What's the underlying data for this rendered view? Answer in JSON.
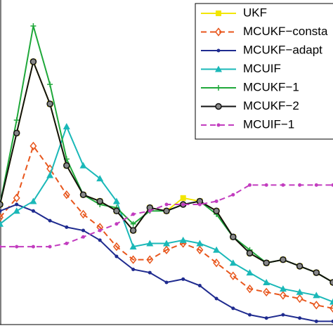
{
  "chart_data": {
    "type": "line",
    "x": [
      0,
      5,
      10,
      15,
      20,
      25,
      30,
      35,
      40,
      45,
      50,
      55,
      60,
      65,
      70,
      75,
      80,
      85,
      90,
      95,
      100
    ],
    "xlim": [
      0,
      100
    ],
    "ylim": [
      0,
      100
    ],
    "legend": "upper right",
    "series": [
      {
        "name": "UKF",
        "color": "#f2e600",
        "marker": "square",
        "dash": false,
        "values": [
          37,
          59,
          81,
          68,
          49,
          40,
          38,
          35,
          29,
          36,
          35,
          39,
          38,
          35,
          27,
          22,
          19,
          20,
          18,
          16,
          13
        ]
      },
      {
        "name": "MCUKF−consta",
        "color": "#e8561c",
        "marker": "diamond",
        "dash": true,
        "values": [
          33,
          39,
          55,
          48,
          40,
          34,
          30,
          24,
          20,
          20,
          23,
          25,
          23,
          19,
          15,
          11,
          10,
          9,
          8,
          6,
          5
        ]
      },
      {
        "name": "MCUKF−adapt",
        "color": "#1f2b8f",
        "marker": "dot",
        "dash": false,
        "values": [
          35,
          37,
          35,
          32,
          30,
          29,
          26,
          21,
          17,
          16,
          13,
          14,
          12,
          8,
          5,
          3,
          2,
          3,
          2,
          1,
          1
        ]
      },
      {
        "name": "MCUIF",
        "color": "#1ab8b8",
        "marker": "triangle",
        "dash": false,
        "values": [
          31,
          35,
          38,
          46,
          61,
          49,
          45,
          38,
          24,
          25,
          25,
          26,
          25,
          23,
          19,
          16,
          13,
          11,
          10,
          9,
          7
        ]
      },
      {
        "name": "MCUKF−1",
        "color": "#1fa83a",
        "marker": "plus",
        "dash": false,
        "values": [
          37,
          63,
          92,
          74,
          51,
          40,
          37,
          36,
          31,
          35,
          35,
          37,
          38,
          34,
          27,
          23,
          19,
          20,
          18,
          16,
          13
        ]
      },
      {
        "name": "MCUKF−2",
        "color": "#111111",
        "marker": "circle",
        "dash": false,
        "values": [
          37,
          59,
          81,
          68,
          49,
          40,
          38,
          35,
          29,
          36,
          35,
          37,
          38,
          35,
          27,
          22,
          19,
          20,
          18,
          16,
          13
        ]
      },
      {
        "name": "MCUIF−1",
        "color": "#c23cbf",
        "marker": "dot",
        "dash": true,
        "values": [
          24,
          24,
          24,
          24,
          25,
          27,
          29,
          31,
          34,
          35,
          37,
          37,
          37,
          38,
          40,
          43,
          43,
          43,
          43,
          43,
          43
        ]
      }
    ]
  }
}
